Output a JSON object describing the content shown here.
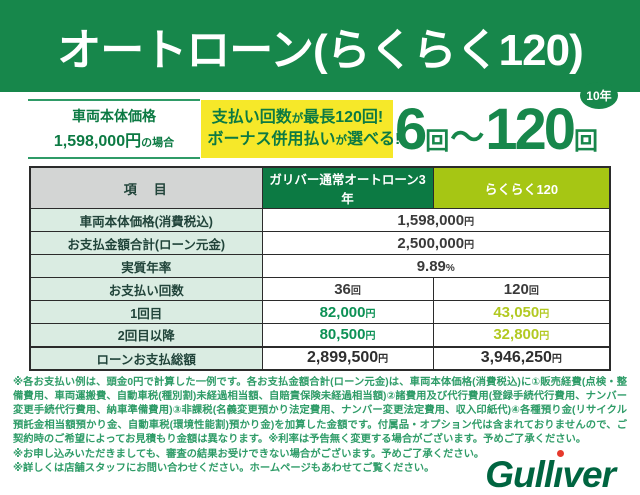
{
  "colors": {
    "banner_green": "#17874b",
    "dark_green": "#0c7a43",
    "highlight_yellow": "#f6e829",
    "lime_green": "#a6c614",
    "mint_cell": "#daece2",
    "gray_cell": "#d3d5d4",
    "table_border": "#2b2b2b",
    "value_green": "#0c9155",
    "value_lime": "#b2c922",
    "disclaimer_green": "#2f9c68",
    "logo_green": "#006540",
    "logo_dot_red": "#e6392c"
  },
  "banner": {
    "title": "オートローン(らくらく120)"
  },
  "hero": {
    "price_caption_line1": "車両本体価格",
    "price_amount": "1,598,000円",
    "price_suffix": "の場合",
    "highlight": {
      "line1_pre": "支払い回数",
      "line1_small": "が",
      "line1_post": "最長120回!",
      "line2_pre": "ボーナス併用払い",
      "line2_small": "が",
      "line2_post": "選べる!"
    },
    "range": {
      "from_num": "6",
      "from_unit": "回",
      "tilde": "〜",
      "to_num": "120",
      "to_unit": "回",
      "badge": "10年"
    }
  },
  "table": {
    "headers": {
      "item": "項　目",
      "normal": "ガリバー通常オートローン3年",
      "rakuraku": "らくらく120"
    },
    "rows": [
      {
        "label": "車両本体価格(消費税込)",
        "span_amount": "1,598,000",
        "span_suffix": "円"
      },
      {
        "label": "お支払金額合計(ローン元金)",
        "span_amount": "2,500,000",
        "span_suffix": "円"
      },
      {
        "label": "実質年率",
        "span_amount": "9.89",
        "span_suffix": "%"
      },
      {
        "label": "お支払い回数",
        "v1_amount": "36",
        "v1_suffix": "回",
        "v2_amount": "120",
        "v2_suffix": "回"
      },
      {
        "label": "1回目",
        "v1_amount": "82,000",
        "v1_suffix": "円",
        "v2_amount": "43,050",
        "v2_suffix": "円"
      },
      {
        "label": "2回目以降",
        "v1_amount": "80,500",
        "v1_suffix": "円",
        "v2_amount": "32,800",
        "v2_suffix": "円"
      },
      {
        "label": "ローンお支払総額",
        "v1_amount": "2,899,500",
        "v1_suffix": "円",
        "v2_amount": "3,946,250",
        "v2_suffix": "円"
      }
    ]
  },
  "disclaimer": {
    "paragraph": "※各お支払い例は、頭金0円で計算した一例です。各お支払金額合計(ローン元金)は、車両本体価格(消費税込)に①販売経費(点検・整備費用、車両運搬費、自動車税(種別割)未経過相当額、自賠責保険未経過相当額)②諸費用及び代行費用(登録手続代行費用、ナンバー変更手続代行費用、納車準備費用)③非課税(名義変更預かり法定費用、ナンバー変更法定費用、収入印紙代)④各種預り金(リサイクル預託金相当額預かり金、自動車税(環境性能割)預かり金)を加算した金額です。付属品・オプション代は含まれておりませんので、ご契約時のご希望によってお見積もり金額は異なります。※利率は予告無く変更する場合がございます。予めご了承ください。",
    "line2": "※お申し込みいただきましても、審査の結果お受けできない場合がございます。予めご了承ください。",
    "line3": "※詳しくは店舗スタッフにお問い合わせください。ホームページもあわせてご覧ください。"
  },
  "logo": {
    "text": "Gulliver",
    "part1": "Gull",
    "part_i": "ı",
    "part2": "ver"
  }
}
